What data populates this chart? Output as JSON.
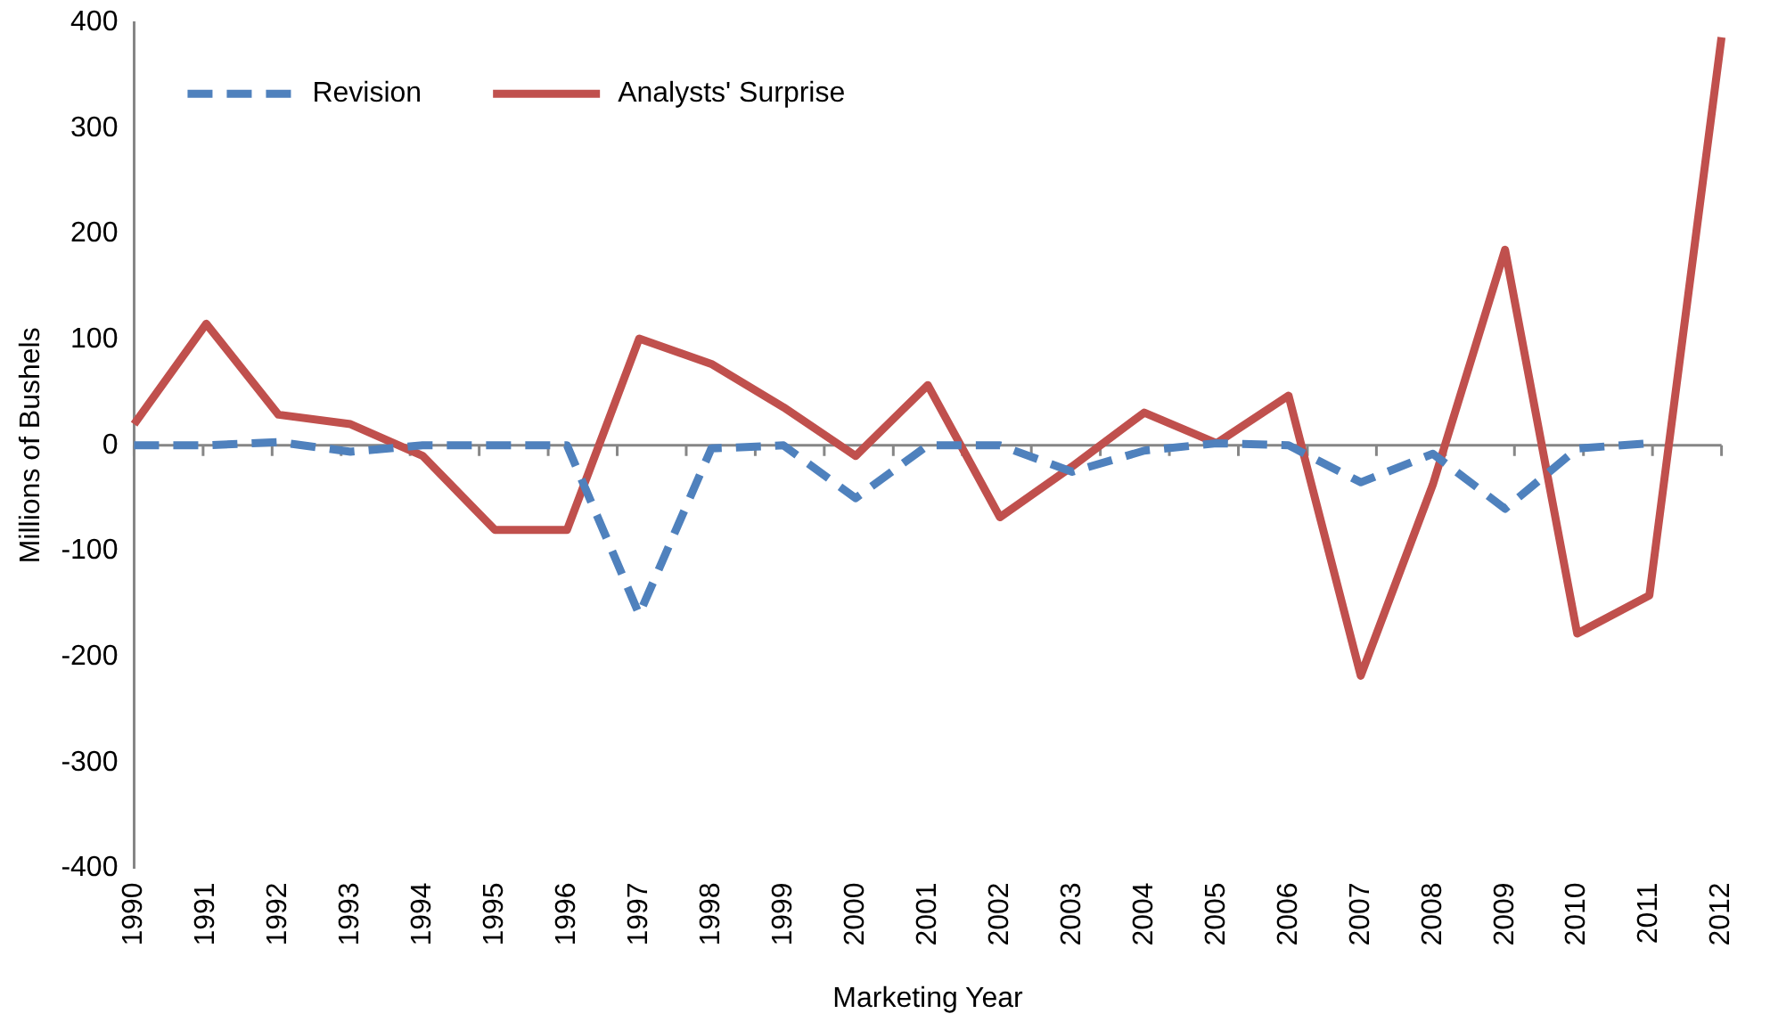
{
  "chart_data": {
    "type": "line",
    "xlabel": "Marketing Year",
    "ylabel": "Millions of Bushels",
    "categories": [
      "1990",
      "1991",
      "1992",
      "1993",
      "1994",
      "1995",
      "1996",
      "1997",
      "1998",
      "1999",
      "2000",
      "2001",
      "2002",
      "2003",
      "2004",
      "2005",
      "2006",
      "2007",
      "2008",
      "2009",
      "2010",
      "2011",
      "2012"
    ],
    "series": [
      {
        "name": "Revision",
        "color": "#4f81bd",
        "line_style": "dashed",
        "values": [
          0,
          0,
          3,
          -6,
          0,
          0,
          0,
          -160,
          -3,
          0,
          -50,
          0,
          0,
          -25,
          -5,
          2,
          0,
          -35,
          -8,
          -60,
          -3,
          2,
          null
        ]
      },
      {
        "name": "Analysts' Surprise",
        "color": "#c0504d",
        "line_style": "solid",
        "values": [
          20,
          115,
          29,
          20,
          -10,
          -80,
          -80,
          101,
          77,
          36,
          -10,
          57,
          -68,
          -20,
          31,
          2,
          47,
          -218,
          -37,
          185,
          -178,
          -142,
          386
        ]
      }
    ],
    "ylim": [
      -400,
      400
    ],
    "yticks": [
      -400,
      -300,
      -200,
      -100,
      0,
      100,
      200,
      300,
      400
    ],
    "ref_lines": [
      {
        "axis": "y",
        "value": 0,
        "color": "#868686"
      }
    ],
    "grid": false,
    "legend": "top left",
    "marker": "none"
  }
}
